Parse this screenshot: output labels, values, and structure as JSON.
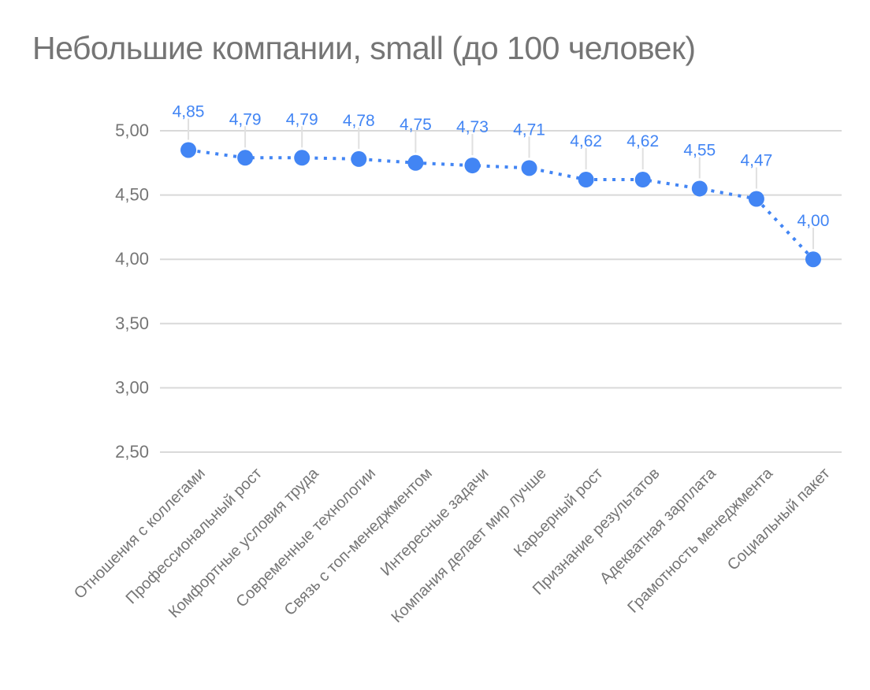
{
  "chart_data": {
    "type": "line",
    "title": "Небольшие компании, small (до 100 человек)",
    "categories": [
      "Отношения с коллегами",
      "Профессиональный рост",
      "Комфортные условия труда",
      "Современные технологии",
      "Связь с топ-менеджментом",
      "Интересные задачи",
      "Компания делает мир лучше",
      "Карьерный рост",
      "Признание результатов",
      "Адекватная зарплата",
      "Грамотность менеджмента",
      "Социальный пакет"
    ],
    "values": [
      4.85,
      4.79,
      4.79,
      4.78,
      4.75,
      4.73,
      4.71,
      4.62,
      4.62,
      4.55,
      4.47,
      4.0
    ],
    "point_labels": [
      "4,85",
      "4,79",
      "4,79",
      "4,78",
      "4,75",
      "4,73",
      "4,71",
      "4,62",
      "4,62",
      "4,55",
      "4,47",
      "4,00"
    ],
    "ytick_labels": [
      "5,00",
      "4,50",
      "4,00",
      "3,50",
      "3,00",
      "2,50"
    ],
    "ytick_values": [
      5.0,
      4.5,
      4.0,
      3.5,
      3.0,
      2.5
    ],
    "ylim": [
      2.5,
      5.0
    ],
    "xlabel": "",
    "ylabel": "",
    "grid": true,
    "legend": "none",
    "line_style": "dotted",
    "marker": "circle",
    "colors": {
      "series": "#4285f4",
      "data_label": "#4285f4",
      "grid": "#d9d9d9",
      "axis_text": "#757575",
      "title_text": "#757575",
      "callout": "#e0e0e0",
      "background": "#ffffff"
    }
  }
}
